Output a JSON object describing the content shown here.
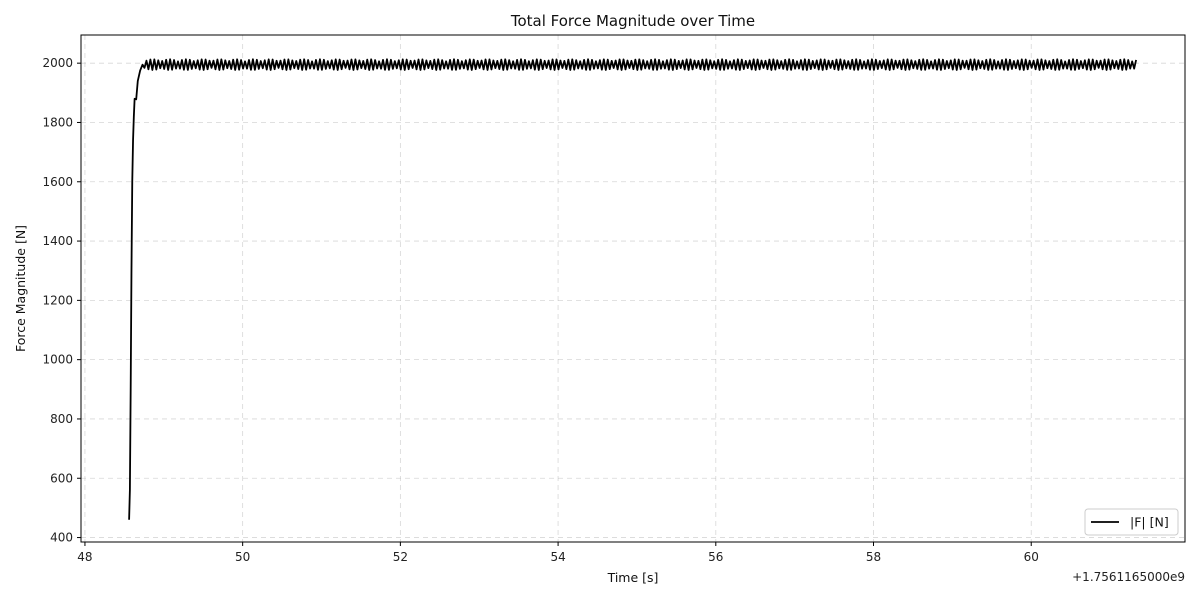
{
  "chart_data": {
    "type": "line",
    "title": "Total Force Magnitude over Time",
    "xlabel": "Time [s]",
    "ylabel": "Force Magnitude [N]",
    "x_offset_label": "+1.7561165000e9",
    "xlim": [
      47.95,
      61.95
    ],
    "ylim": [
      385,
      2095
    ],
    "x_ticks": [
      48,
      50,
      52,
      54,
      56,
      58,
      60
    ],
    "y_ticks": [
      400,
      600,
      800,
      1000,
      1200,
      1400,
      1600,
      1800,
      2000
    ],
    "grid": true,
    "legend_position": "lower-right",
    "series": [
      {
        "name": "|F| [N]",
        "color": "#000000",
        "start_x": 48.56,
        "end_x": 61.33,
        "ramp": [
          [
            48.56,
            460
          ],
          [
            48.57,
            560
          ],
          [
            48.58,
            900
          ],
          [
            48.59,
            1300
          ],
          [
            48.6,
            1600
          ],
          [
            48.61,
            1740
          ],
          [
            48.62,
            1820
          ],
          [
            48.63,
            1880
          ],
          [
            48.65,
            1878
          ],
          [
            48.67,
            1940
          ],
          [
            48.7,
            1975
          ],
          [
            48.73,
            1995
          ]
        ],
        "steady_value": 1995,
        "oscillation_amplitude": 18
      }
    ]
  }
}
